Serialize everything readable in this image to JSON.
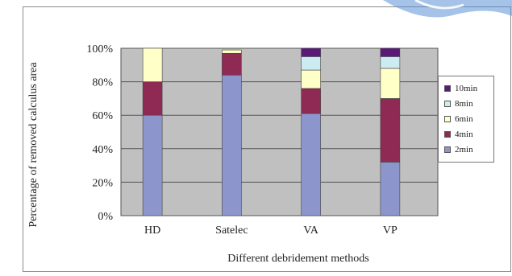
{
  "chart_data": {
    "type": "bar",
    "stacked": true,
    "xlabel": "Different debridement methods",
    "ylabel": "Percentage of removed calculus area",
    "ylim": [
      0,
      100
    ],
    "y_ticks": [
      "0%",
      "20%",
      "40%",
      "60%",
      "80%",
      "100%"
    ],
    "y_tick_values": [
      0,
      20,
      40,
      60,
      80,
      100
    ],
    "grid": true,
    "legend_position": "right",
    "categories": [
      "HD",
      "Satelec",
      "VA",
      "VP"
    ],
    "series": [
      {
        "name": "2min",
        "color": "#8c96cc",
        "values": [
          60,
          84,
          61,
          32
        ]
      },
      {
        "name": "4min",
        "color": "#8f2a55",
        "values": [
          20,
          13,
          15,
          38
        ]
      },
      {
        "name": "6min",
        "color": "#ffffc8",
        "values": [
          20,
          2,
          11,
          18
        ]
      },
      {
        "name": "8min",
        "color": "#ccecf2",
        "values": [
          0,
          0,
          8,
          7
        ]
      },
      {
        "name": "10min",
        "color": "#5a1a7a",
        "values": [
          0,
          0,
          5,
          5
        ]
      }
    ],
    "legend_order": [
      "10min",
      "8min",
      "6min",
      "4min",
      "2min"
    ],
    "plot_background": "#c0c0c0"
  }
}
